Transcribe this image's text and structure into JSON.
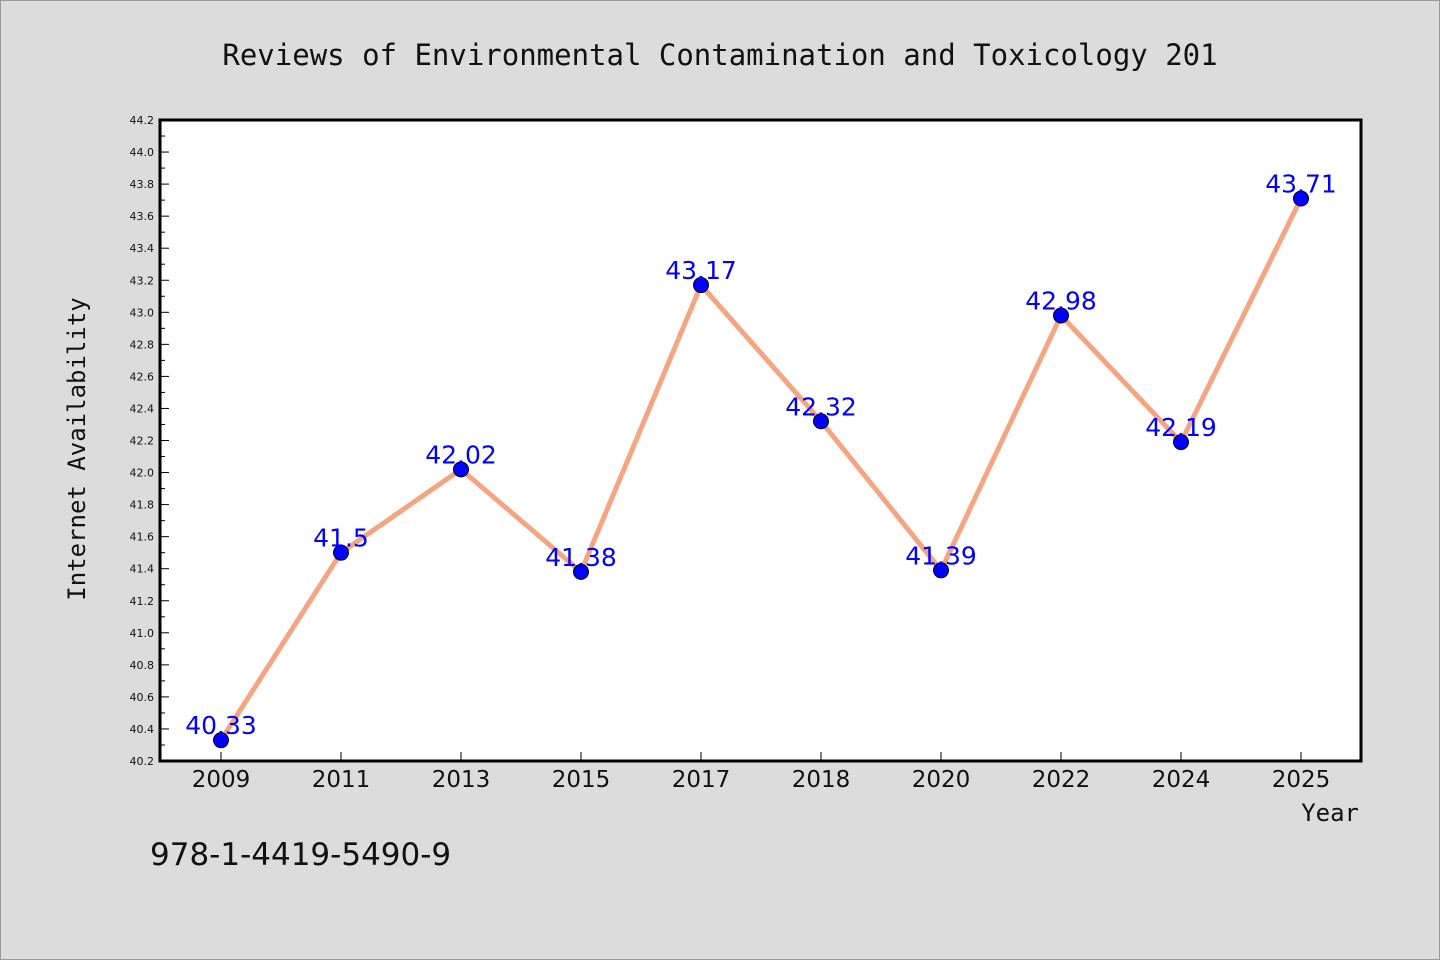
{
  "chart_data": {
    "type": "line",
    "title": "Reviews of Environmental Contamination and Toxicology 201",
    "xlabel": "Year",
    "ylabel": "Internet Availability",
    "categories": [
      "2009",
      "2011",
      "2013",
      "2015",
      "2017",
      "2018",
      "2020",
      "2022",
      "2024",
      "2025"
    ],
    "series": [
      {
        "values": [
          40.33,
          41.5,
          42.02,
          41.38,
          43.17,
          42.32,
          41.39,
          42.98,
          42.19,
          43.71
        ]
      }
    ],
    "data_labels": [
      "40.33",
      "41.5",
      "42.02",
      "41.38",
      "43.17",
      "42.32",
      "41.39",
      "42.98",
      "42.19",
      "43.71"
    ],
    "ylim": [
      40.2,
      44.2
    ],
    "yticks": [
      "40.2",
      "40.4",
      "40.6",
      "40.8",
      "41.0",
      "41.2",
      "41.4",
      "41.6",
      "41.8",
      "42.0",
      "42.2",
      "42.4",
      "42.6",
      "42.8",
      "43.0",
      "43.2",
      "43.4",
      "43.6",
      "43.8",
      "44.0",
      "44.2"
    ],
    "grid": false,
    "colors": {
      "line": "#f4a582",
      "marker": "#0000ff",
      "label": "#0000ff",
      "plot_background": "#ffffff",
      "figure_background": "#dcdcdc"
    }
  },
  "annotation": "978-1-4419-5490-9"
}
